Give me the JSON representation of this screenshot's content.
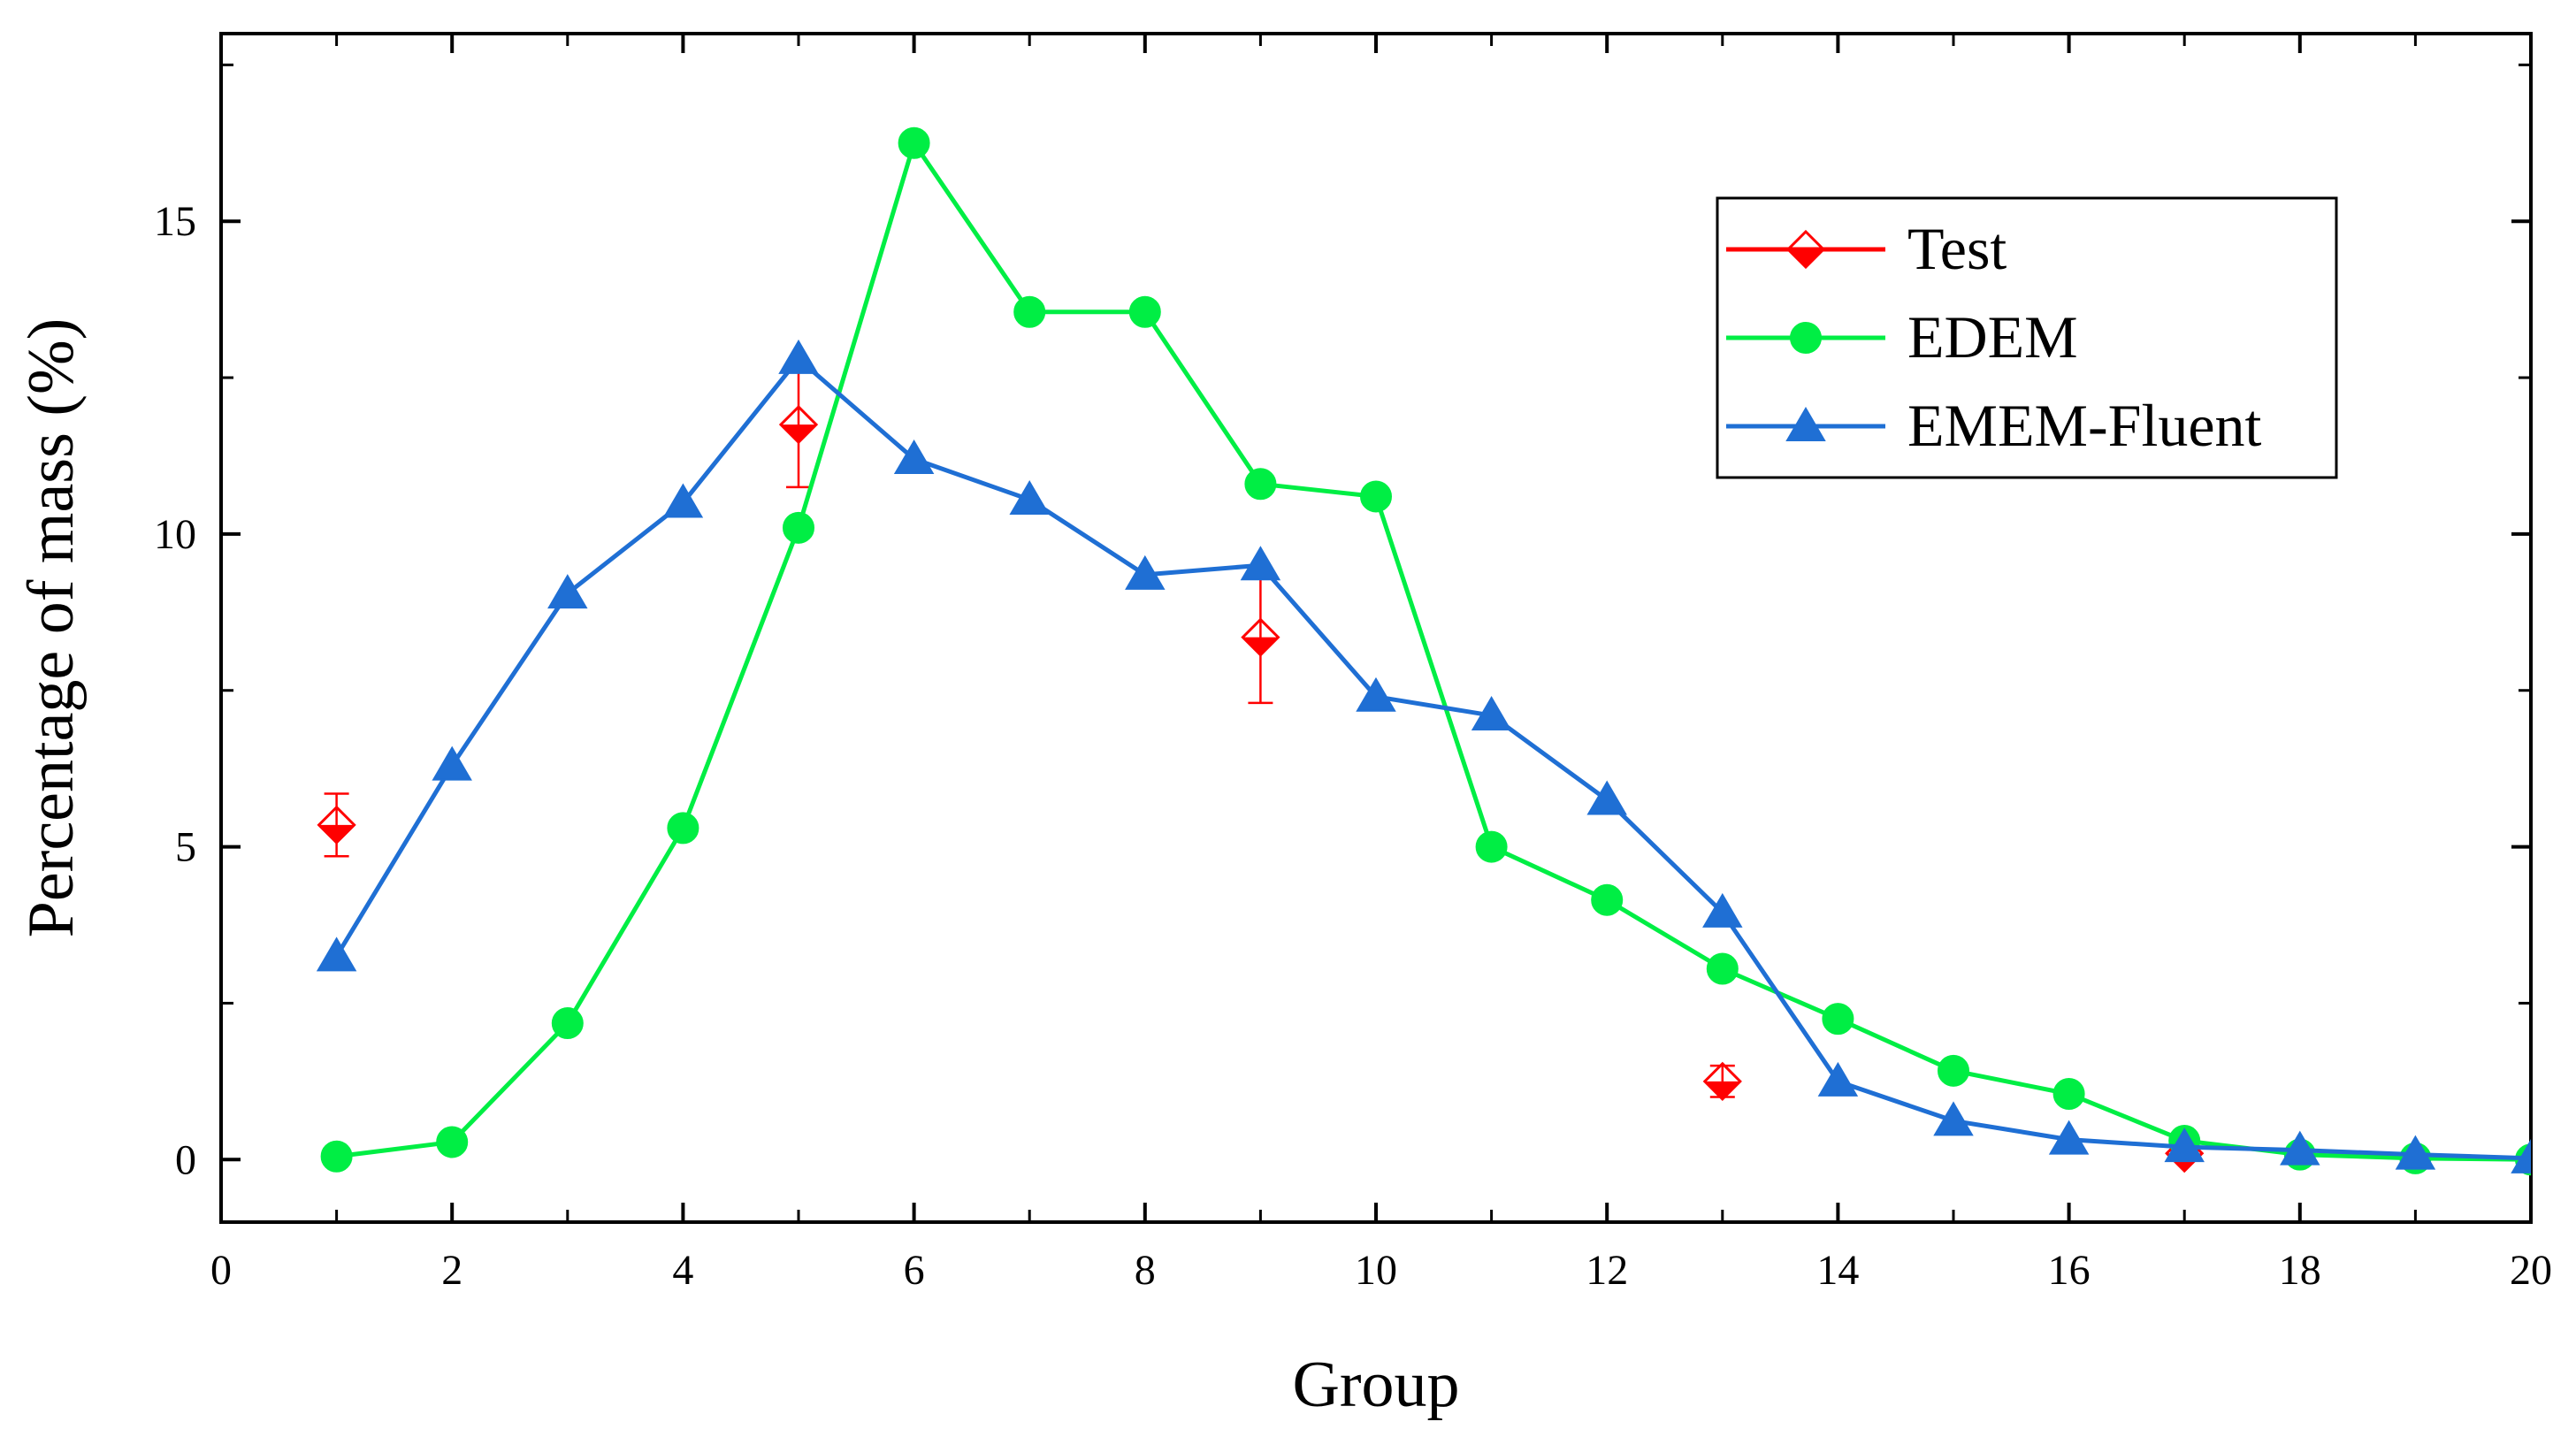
{
  "chart_data": {
    "type": "line",
    "title": "",
    "xlabel": "Group",
    "ylabel": "Percentage of mass (%)",
    "xlim": [
      0,
      20
    ],
    "ylim": [
      -1,
      18
    ],
    "xticks": [
      0,
      2,
      4,
      6,
      8,
      10,
      12,
      14,
      16,
      18,
      20
    ],
    "yticks": [
      0,
      5,
      10,
      15
    ],
    "grid": false,
    "legend_position": "top-right",
    "series": [
      {
        "name": "Test",
        "color": "#ff0000",
        "marker": "diamond-half-filled",
        "line": false,
        "x": [
          1,
          5,
          9,
          13,
          17
        ],
        "values": [
          5.35,
          11.75,
          8.35,
          1.25,
          0.1
        ],
        "error": [
          0.5,
          1.0,
          1.05,
          0.25,
          0.0
        ]
      },
      {
        "name": "EDEM",
        "color": "#00ee44",
        "marker": "circle",
        "line": true,
        "x": [
          1,
          2,
          3,
          4,
          5,
          6,
          7,
          8,
          9,
          10,
          11,
          12,
          13,
          14,
          15,
          16,
          17,
          18,
          19,
          20
        ],
        "values": [
          0.05,
          0.28,
          2.18,
          5.3,
          10.1,
          16.25,
          13.55,
          13.55,
          10.8,
          10.6,
          5.0,
          4.15,
          3.05,
          2.25,
          1.42,
          1.05,
          0.3,
          0.08,
          0.02,
          0.0
        ]
      },
      {
        "name": "EMEM-Fluent",
        "color": "#1f6fd4",
        "marker": "triangle",
        "line": true,
        "x": [
          1,
          2,
          3,
          4,
          5,
          6,
          7,
          8,
          9,
          10,
          11,
          12,
          13,
          14,
          15,
          16,
          17,
          18,
          19,
          20
        ],
        "values": [
          3.25,
          6.3,
          9.05,
          10.5,
          12.8,
          11.2,
          10.55,
          9.35,
          9.5,
          7.4,
          7.1,
          5.75,
          3.95,
          1.25,
          0.62,
          0.32,
          0.2,
          0.15,
          0.08,
          0.02
        ]
      }
    ]
  }
}
